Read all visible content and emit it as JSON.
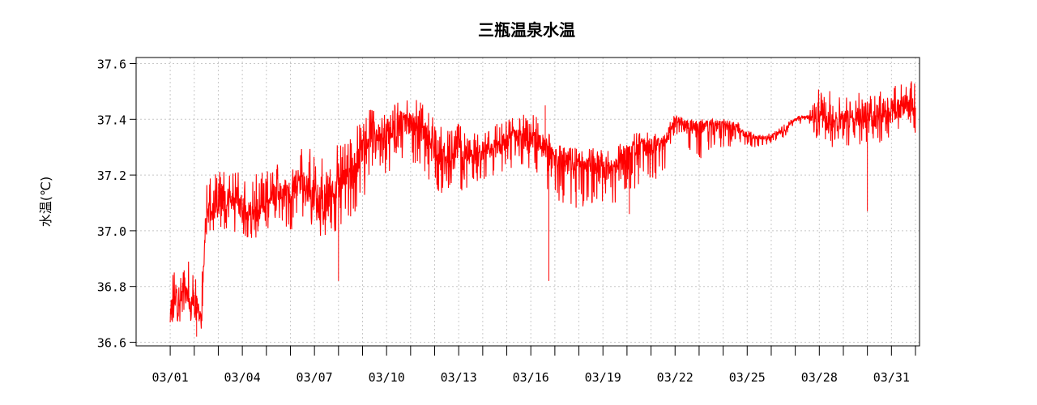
{
  "chart_data": {
    "type": "line",
    "title": "三瓶温泉水温",
    "xlabel": "",
    "ylabel": "水温(℃)",
    "ylim": [
      36.6,
      37.6
    ],
    "yticks": [
      "36.6",
      "36.8",
      "37.0",
      "37.2",
      "37.4",
      "37.6"
    ],
    "ytick_values": [
      36.6,
      36.8,
      37.0,
      37.2,
      37.4,
      37.6
    ],
    "xlim": [
      -0.25,
      32.0
    ],
    "xtick_labels": [
      "03/01",
      "03/04",
      "03/07",
      "03/10",
      "03/13",
      "03/16",
      "03/19",
      "03/22",
      "03/25",
      "03/28",
      "03/31"
    ],
    "xtick_label_days": [
      1,
      4,
      7,
      10,
      13,
      16,
      19,
      22,
      25,
      28,
      31
    ],
    "xtick_days": [
      1,
      2,
      3,
      4,
      5,
      6,
      7,
      8,
      9,
      10,
      11,
      12,
      13,
      14,
      15,
      16,
      17,
      18,
      19,
      20,
      21,
      22,
      23,
      24,
      25,
      26,
      27,
      28,
      29,
      30,
      31,
      32
    ],
    "grid": true,
    "series": [
      {
        "color": "#ff0000",
        "x": [
          1.0,
          1.5,
          2.0,
          2.3,
          2.5,
          3.0,
          3.5,
          4.0,
          4.5,
          5.0,
          5.5,
          6.0,
          6.5,
          7.0,
          7.5,
          8.0,
          8.5,
          9.0,
          9.5,
          10.0,
          10.5,
          11.0,
          11.5,
          12.0,
          12.5,
          13.0,
          13.5,
          14.0,
          14.5,
          15.0,
          15.5,
          16.0,
          16.5,
          17.0,
          17.5,
          18.0,
          18.5,
          19.0,
          19.5,
          20.0,
          20.5,
          21.0,
          21.5,
          22.0,
          22.5,
          23.0,
          23.5,
          24.0,
          24.5,
          25.0,
          25.5,
          26.0,
          26.5,
          27.0,
          27.5,
          28.0,
          28.5,
          29.0,
          29.5,
          30.0,
          30.5,
          31.0,
          31.5,
          32.0
        ],
        "y": [
          36.72,
          36.78,
          36.74,
          36.7,
          37.05,
          37.1,
          37.12,
          37.08,
          37.05,
          37.1,
          37.14,
          37.15,
          37.18,
          37.12,
          37.1,
          37.16,
          37.2,
          37.3,
          37.36,
          37.32,
          37.4,
          37.38,
          37.36,
          37.3,
          37.26,
          37.3,
          37.26,
          37.28,
          37.3,
          37.32,
          37.34,
          37.33,
          37.3,
          37.26,
          37.24,
          37.23,
          37.23,
          37.24,
          37.23,
          37.28,
          37.3,
          37.3,
          37.31,
          37.4,
          37.38,
          37.37,
          37.38,
          37.38,
          37.37,
          37.34,
          37.33,
          37.34,
          37.36,
          37.4,
          37.41,
          37.4,
          37.39,
          37.4,
          37.41,
          37.4,
          37.41,
          37.42,
          37.45,
          37.44
        ],
        "range_low": [
          36.65,
          36.68,
          36.66,
          36.62,
          36.98,
          37.0,
          37.0,
          36.98,
          36.97,
          37.0,
          37.02,
          37.0,
          37.05,
          37.0,
          36.95,
          37.0,
          37.05,
          37.1,
          37.25,
          37.2,
          37.25,
          37.25,
          37.22,
          37.15,
          37.12,
          37.15,
          37.12,
          37.18,
          37.2,
          37.22,
          37.22,
          37.22,
          37.18,
          37.1,
          37.08,
          37.08,
          37.08,
          37.1,
          37.1,
          37.15,
          37.15,
          37.17,
          37.2,
          37.35,
          37.3,
          37.25,
          37.28,
          37.3,
          37.3,
          37.3,
          37.3,
          37.31,
          37.33,
          37.38,
          37.39,
          37.3,
          37.3,
          37.3,
          37.31,
          37.3,
          37.31,
          37.32,
          37.33,
          37.34
        ],
        "range_high": [
          36.85,
          36.9,
          36.88,
          36.8,
          37.2,
          37.24,
          37.24,
          37.2,
          37.2,
          37.22,
          37.26,
          37.28,
          37.3,
          37.3,
          37.28,
          37.32,
          37.36,
          37.4,
          37.46,
          37.42,
          37.48,
          37.48,
          37.46,
          37.42,
          37.36,
          37.4,
          37.35,
          37.36,
          37.38,
          37.4,
          37.42,
          37.42,
          37.4,
          37.32,
          37.3,
          37.3,
          37.3,
          37.3,
          37.3,
          37.34,
          37.36,
          37.35,
          37.36,
          37.42,
          37.4,
          37.4,
          37.4,
          37.4,
          37.4,
          37.36,
          37.35,
          37.35,
          37.38,
          37.41,
          37.42,
          37.52,
          37.5,
          37.5,
          37.5,
          37.5,
          37.5,
          37.51,
          37.56,
          37.53
        ],
        "spikes": [
          {
            "x": 16.75,
            "y": 36.82
          },
          {
            "x": 8.0,
            "y": 36.82
          },
          {
            "x": 30.0,
            "y": 37.07
          },
          {
            "x": 20.1,
            "y": 37.06
          },
          {
            "x": 2.1,
            "y": 36.62
          },
          {
            "x": 16.6,
            "y": 37.45
          }
        ]
      }
    ]
  }
}
